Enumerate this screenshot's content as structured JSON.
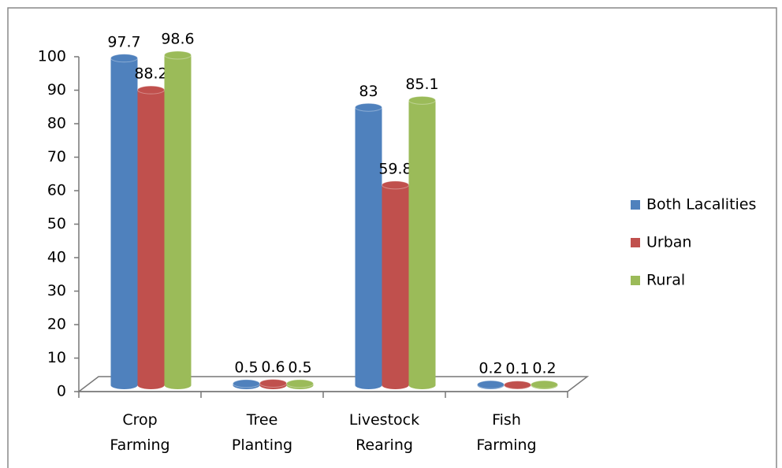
{
  "chart_data": {
    "type": "bar3d",
    "categories": [
      "Crop Farming",
      "Tree Planting",
      "Livestock Rearing",
      "Fish Farming"
    ],
    "series": [
      {
        "name": "Both Lacalities",
        "color": "#4f81bd",
        "values": [
          97.7,
          0.5,
          83,
          0.2
        ]
      },
      {
        "name": "Urban",
        "color": "#c0504d",
        "values": [
          88.2,
          0.6,
          59.8,
          0.1
        ]
      },
      {
        "name": "Rural",
        "color": "#9bbb59",
        "values": [
          98.6,
          0.5,
          85.1,
          0.2
        ]
      }
    ],
    "ylim": [
      0,
      100
    ],
    "yticks": [
      0,
      10,
      20,
      30,
      40,
      50,
      60,
      70,
      80,
      90,
      100
    ],
    "legend": "right"
  }
}
